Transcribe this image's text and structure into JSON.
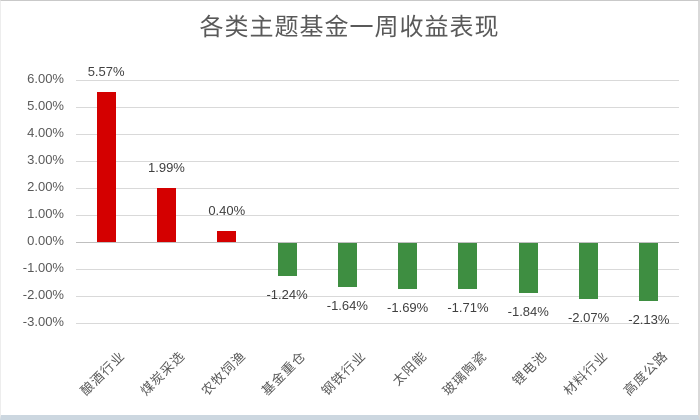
{
  "chart_data": {
    "type": "bar",
    "title": "各类主题基金一周收益表现",
    "categories": [
      "酿酒行业",
      "煤炭采选",
      "农牧饲渔",
      "基金重仓",
      "钢铁行业",
      "太阳能",
      "玻璃陶瓷",
      "锂电池",
      "材料行业",
      "高度公路"
    ],
    "values": [
      5.57,
      1.99,
      0.4,
      -1.24,
      -1.64,
      -1.69,
      -1.71,
      -1.84,
      -2.07,
      -2.13
    ],
    "value_labels": [
      "5.57%",
      "1.99%",
      "0.40%",
      "-1.24%",
      "-1.64%",
      "-1.69%",
      "-1.71%",
      "-1.84%",
      "-2.07%",
      "-2.13%"
    ],
    "xlabel": "",
    "ylabel": "",
    "ylim": [
      -3,
      6
    ],
    "grid": true,
    "legend": false,
    "y_axis": {
      "ticks": [
        {
          "label": "6.00%",
          "value": 6
        },
        {
          "label": "5.00%",
          "value": 5
        },
        {
          "label": "4.00%",
          "value": 4
        },
        {
          "label": "3.00%",
          "value": 3
        },
        {
          "label": "2.00%",
          "value": 2
        },
        {
          "label": "1.00%",
          "value": 1
        },
        {
          "label": "0.00%",
          "value": 0
        },
        {
          "label": "-1.00%",
          "value": -1
        },
        {
          "label": "-2.00%",
          "value": -2
        },
        {
          "label": "-3.00%",
          "value": -3
        }
      ]
    },
    "colors": {
      "positive_bar": "#d40000",
      "negative_bar": "#3e8e41",
      "gridline": "#d9d9d9",
      "zero_line": "#bfbfbf",
      "title_text": "#595959",
      "axis_text": "#595959",
      "value_label_text": "#404040"
    }
  }
}
